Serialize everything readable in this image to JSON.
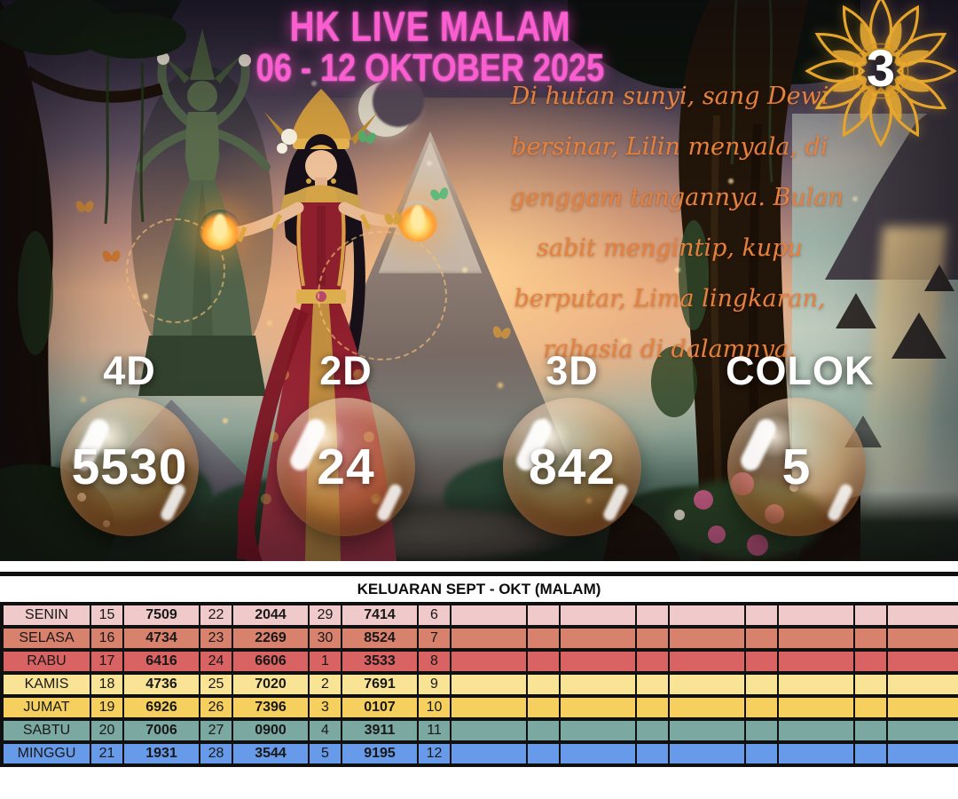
{
  "hero": {
    "title_line1": "HK LIVE MALAM",
    "title_line2": "06 - 12 OKTOBER 2025",
    "title_color": "#fb5ed1",
    "badge": {
      "value": "3",
      "icon": "gold-mandala-flower",
      "color": "#e6a42b"
    },
    "poem": {
      "color": "#e5813f",
      "lines": [
        "Di hutan sunyi, sang Dewi",
        "bersinar, Lilin menyala, di",
        "genggam tangannya. Bulan",
        "sabit mengintip, kupu",
        "berputar, Lima lingkaran,",
        "rahasia di dalamnya."
      ]
    }
  },
  "predictions": [
    {
      "label": "4D",
      "value": "5530"
    },
    {
      "label": "2D",
      "value": "24"
    },
    {
      "label": "3D",
      "value": "842"
    },
    {
      "label": "COLOK",
      "value": "5"
    }
  ],
  "table": {
    "title": "KELUARAN SEPT - OKT (MALAM)",
    "rows": [
      {
        "day": "SENIN",
        "color": "#f0caca",
        "cells": [
          "15",
          "7509",
          "22",
          "2044",
          "29",
          "7414",
          "6",
          "",
          "",
          "",
          "",
          "",
          "",
          "",
          "",
          ""
        ]
      },
      {
        "day": "SELASA",
        "color": "#d8816c",
        "cells": [
          "16",
          "4734",
          "23",
          "2269",
          "30",
          "8524",
          "7",
          "",
          "",
          "",
          "",
          "",
          "",
          "",
          "",
          ""
        ]
      },
      {
        "day": "RABU",
        "color": "#d96263",
        "cells": [
          "17",
          "6416",
          "24",
          "6606",
          "1",
          "3533",
          "8",
          "",
          "",
          "",
          "",
          "",
          "",
          "",
          "",
          ""
        ]
      },
      {
        "day": "KAMIS",
        "color": "#f9e495",
        "cells": [
          "18",
          "4736",
          "25",
          "7020",
          "2",
          "7691",
          "9",
          "",
          "",
          "",
          "",
          "",
          "",
          "",
          "",
          ""
        ]
      },
      {
        "day": "JUMAT",
        "color": "#f6d05e",
        "cells": [
          "19",
          "6926",
          "26",
          "7396",
          "3",
          "0107",
          "10",
          "",
          "",
          "",
          "",
          "",
          "",
          "",
          "",
          ""
        ]
      },
      {
        "day": "SABTU",
        "color": "#7ba9a1",
        "cells": [
          "20",
          "7006",
          "27",
          "0900",
          "4",
          "3911",
          "11",
          "",
          "",
          "",
          "",
          "",
          "",
          "",
          "",
          ""
        ]
      },
      {
        "day": "MINGGU",
        "color": "#679ae8",
        "cells": [
          "21",
          "1931",
          "28",
          "3544",
          "5",
          "9195",
          "12",
          "",
          "",
          "",
          "",
          "",
          "",
          "",
          "",
          ""
        ]
      }
    ]
  }
}
